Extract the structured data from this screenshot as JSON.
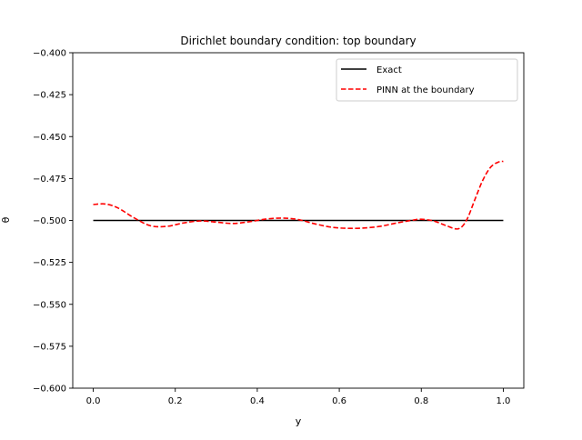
{
  "chart_data": {
    "type": "line",
    "title": "Dirichlet boundary condition: top boundary",
    "xlabel": "y",
    "ylabel": "θ",
    "xlim": [
      -0.05,
      1.05
    ],
    "ylim": [
      -0.6,
      -0.4
    ],
    "x_ticks": [
      0.0,
      0.2,
      0.4,
      0.6,
      0.8,
      1.0
    ],
    "x_tick_labels": [
      "0.0",
      "0.2",
      "0.4",
      "0.6",
      "0.8",
      "1.0"
    ],
    "y_ticks": [
      -0.4,
      -0.425,
      -0.45,
      -0.475,
      -0.5,
      -0.525,
      -0.55,
      -0.575,
      -0.6
    ],
    "y_tick_labels": [
      "−0.400",
      "−0.425",
      "−0.450",
      "−0.475",
      "−0.500",
      "−0.525",
      "−0.550",
      "−0.575",
      "−0.600"
    ],
    "grid": false,
    "legend_position": "top-right",
    "series": [
      {
        "name": "Exact",
        "color": "#000000",
        "dash": "solid",
        "x": [
          0.0,
          1.0
        ],
        "y": [
          -0.5,
          -0.5
        ]
      },
      {
        "name": "PINN at the boundary",
        "color": "#ff0000",
        "dash": "dashed",
        "x": [
          0.0,
          0.03,
          0.06,
          0.1,
          0.14,
          0.18,
          0.22,
          0.26,
          0.3,
          0.34,
          0.38,
          0.42,
          0.46,
          0.5,
          0.54,
          0.58,
          0.62,
          0.66,
          0.7,
          0.74,
          0.78,
          0.8,
          0.83,
          0.86,
          0.89,
          0.91,
          0.93,
          0.95,
          0.97,
          0.99,
          1.0
        ],
        "y": [
          -0.4905,
          -0.4902,
          -0.4925,
          -0.4985,
          -0.5032,
          -0.5035,
          -0.5015,
          -0.5003,
          -0.501,
          -0.5018,
          -0.5008,
          -0.4992,
          -0.4986,
          -0.4995,
          -0.502,
          -0.504,
          -0.5047,
          -0.5045,
          -0.5035,
          -0.5015,
          -0.4998,
          -0.4993,
          -0.5003,
          -0.503,
          -0.505,
          -0.5,
          -0.488,
          -0.476,
          -0.468,
          -0.465,
          -0.4648
        ]
      }
    ]
  }
}
